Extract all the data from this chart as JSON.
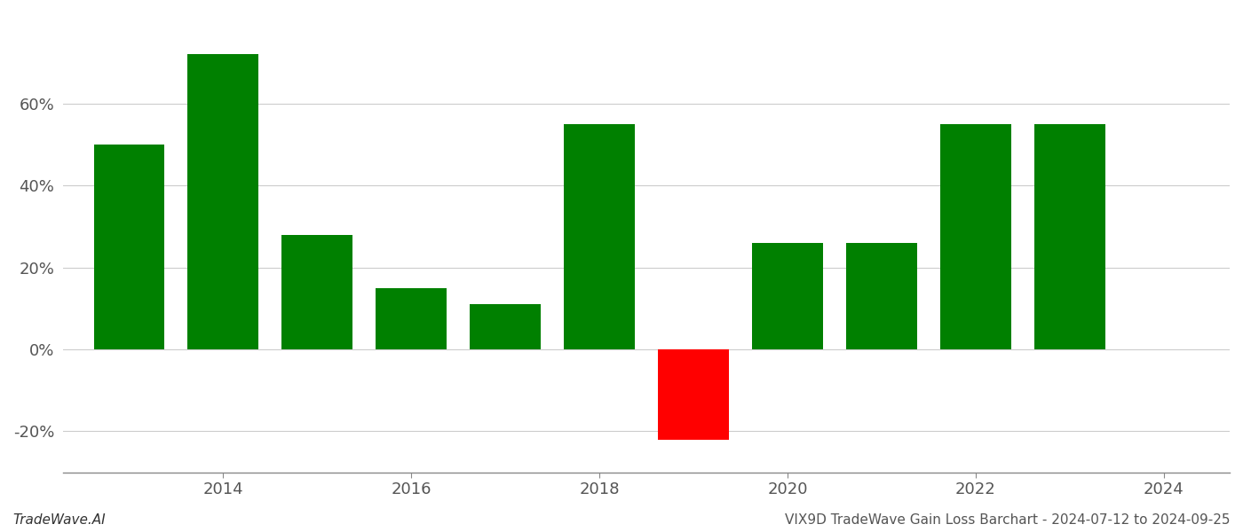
{
  "years": [
    2013,
    2014,
    2015,
    2016,
    2017,
    2018,
    2019,
    2020,
    2021,
    2022,
    2023
  ],
  "values": [
    0.5,
    0.72,
    0.28,
    0.15,
    0.11,
    0.55,
    -0.22,
    0.26,
    0.26,
    0.55,
    0.55
  ],
  "bar_colors": [
    "#008000",
    "#008000",
    "#008000",
    "#008000",
    "#008000",
    "#008000",
    "#ff0000",
    "#008000",
    "#008000",
    "#008000",
    "#008000"
  ],
  "background_color": "#ffffff",
  "grid_color": "#cccccc",
  "axis_label_color": "#555555",
  "footer_left": "TradeWave.AI",
  "footer_right": "VIX9D TradeWave Gain Loss Barchart - 2024-07-12 to 2024-09-25",
  "ylim": [
    -0.3,
    0.82
  ],
  "yticks": [
    -0.2,
    0.0,
    0.2,
    0.4,
    0.6
  ],
  "xtick_labels": [
    "2014",
    "2016",
    "2018",
    "2020",
    "2022",
    "2024"
  ],
  "xtick_positions": [
    2014,
    2016,
    2018,
    2020,
    2022,
    2024
  ],
  "xlim": [
    2012.3,
    2024.7
  ],
  "bar_width": 0.75,
  "tick_fontsize": 13,
  "footer_fontsize": 11
}
